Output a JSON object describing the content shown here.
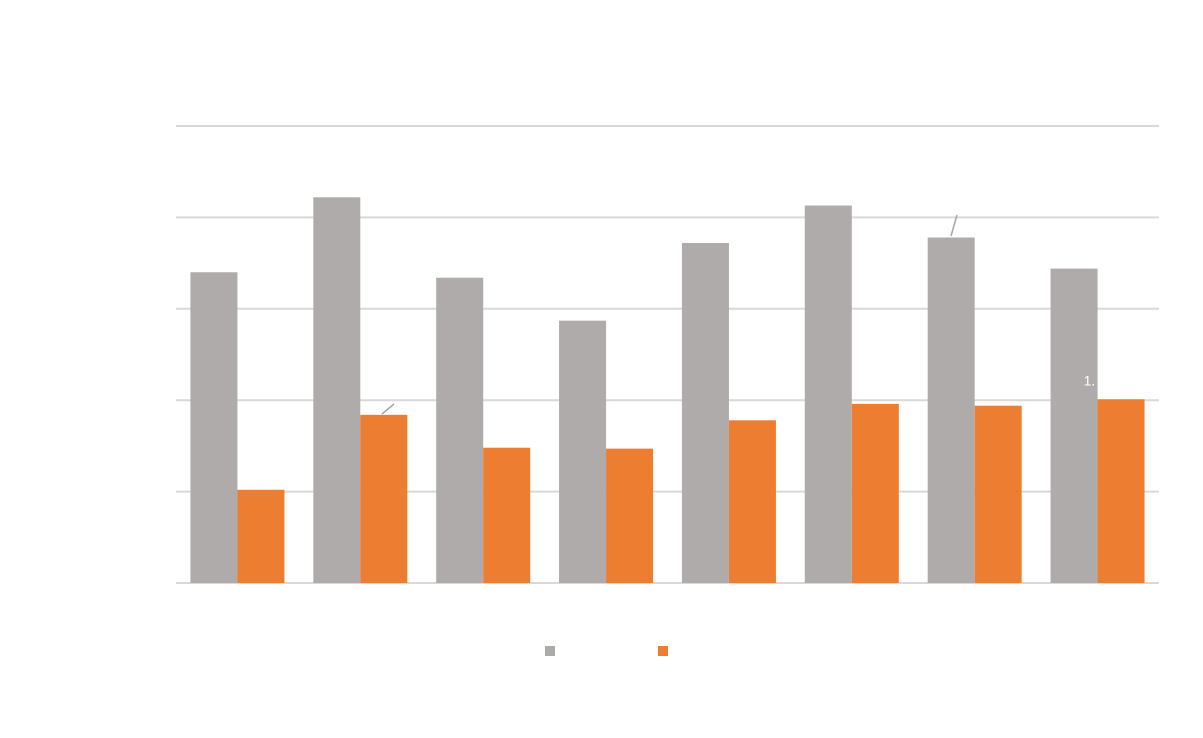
{
  "colors": {
    "series_1": "#afabab",
    "series_2": "#ed7d31",
    "gridline": "#d9d9d9",
    "leader_line": "#a6a6a6",
    "data_label": "#ffffff"
  },
  "chart_data": {
    "type": "bar",
    "categories": [
      "",
      "",
      "",
      "",
      "",
      "",
      "",
      ""
    ],
    "series": [
      {
        "values": [
          3.4,
          4.22,
          3.34,
          2.87,
          3.72,
          4.13,
          3.78,
          3.44
        ]
      },
      {
        "values": [
          1.02,
          1.84,
          1.48,
          1.47,
          1.78,
          1.96,
          1.94,
          2.01
        ]
      }
    ],
    "ylim": [
      0,
      5
    ],
    "y_gridlines": [
      0,
      1,
      2,
      3,
      4,
      5
    ],
    "grid": true,
    "legend_position": "bottom",
    "data_labels": [
      {
        "series": 1,
        "index": 7,
        "text": "1."
      }
    ],
    "title": "",
    "xlabel": "",
    "ylabel": ""
  }
}
